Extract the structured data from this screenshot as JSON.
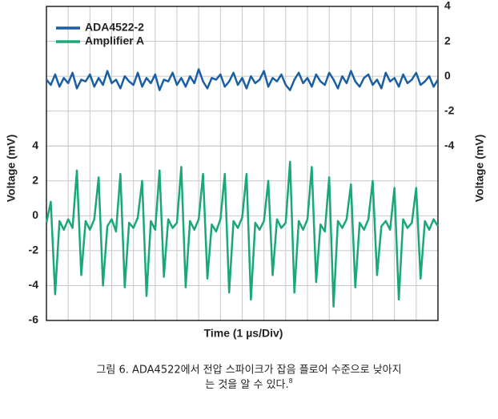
{
  "chart_data": {
    "type": "line",
    "x": [
      0,
      0.2,
      0.4,
      0.6,
      0.8,
      1,
      1.2,
      1.4,
      1.6,
      1.8,
      2,
      2.2,
      2.4,
      2.6,
      2.8,
      3,
      3.2,
      3.4,
      3.6,
      3.8,
      4,
      4.2,
      4.4,
      4.6,
      4.8,
      5,
      5.2,
      5.4,
      5.6,
      5.8,
      6,
      6.2,
      6.4,
      6.6,
      6.8,
      7,
      7.2,
      7.4,
      7.6,
      7.8,
      8,
      8.2,
      8.4,
      8.6,
      8.8,
      9,
      9.2,
      9.4,
      9.6,
      9.8,
      10,
      10.2,
      10.4,
      10.6,
      10.8,
      11,
      11.2,
      11.4,
      11.6,
      11.8,
      12,
      12.2,
      12.4,
      12.6,
      12.8,
      13,
      13.2,
      13.4,
      13.6,
      13.8,
      14,
      14.2,
      14.4,
      14.6,
      14.8,
      15,
      15.2,
      15.4,
      15.6,
      15.8,
      16,
      16.2,
      16.4,
      16.6,
      16.8,
      17,
      17.2,
      17.4,
      17.6,
      17.8,
      18
    ],
    "series": [
      {
        "name": "ADA4522-2",
        "color": "#1a5fa3",
        "axis": "y2",
        "values": [
          -0.2,
          -0.5,
          0.1,
          -0.6,
          -0.1,
          -0.4,
          0.2,
          -0.7,
          -0.2,
          -0.3,
          0.1,
          -0.6,
          -0.1,
          -0.5,
          0.3,
          -0.4,
          -0.2,
          -0.7,
          0.0,
          -0.3,
          -0.5,
          0.2,
          -0.6,
          -0.1,
          -0.4,
          0.1,
          -0.8,
          -0.2,
          -0.3,
          0.2,
          -0.5,
          -0.1,
          -0.6,
          0.0,
          -0.4,
          0.4,
          -0.3,
          -0.7,
          -0.1,
          -0.2,
          0.1,
          -0.6,
          -0.3,
          0.2,
          -0.5,
          -0.1,
          -0.7,
          0.0,
          -0.4,
          -0.2,
          0.3,
          -0.6,
          -0.1,
          -0.3,
          0.1,
          -0.5,
          -0.8,
          -0.2,
          0.2,
          -0.4,
          -0.1,
          -0.6,
          0.1,
          -0.3,
          -0.5,
          0.2,
          -0.2,
          -0.7,
          0.0,
          -0.4,
          0.3,
          -0.3,
          -0.6,
          -0.1,
          0.1,
          -0.5,
          -0.2,
          -0.7,
          0.2,
          -0.3,
          -0.1,
          -0.6,
          0.1,
          -0.4,
          -0.2,
          0.2,
          -0.5,
          -0.3,
          0.0,
          -0.6,
          -0.2
        ]
      },
      {
        "name": "Amplifier A",
        "color": "#1aa879",
        "values": [
          -0.4,
          0.8,
          -4.5,
          -0.3,
          -0.8,
          -0.2,
          -0.7,
          2.6,
          -3.4,
          -0.3,
          -0.8,
          -0.2,
          2.2,
          -4.0,
          -0.6,
          -0.2,
          -0.9,
          2.4,
          -4.1,
          -0.4,
          -0.7,
          -0.1,
          2.0,
          -4.6,
          -0.3,
          -0.8,
          2.6,
          -3.5,
          -0.2,
          -0.7,
          -0.4,
          2.8,
          -4.1,
          -0.3,
          -0.8,
          -0.2,
          2.4,
          -3.6,
          -0.5,
          -0.9,
          -0.2,
          2.4,
          -4.4,
          -0.3,
          -0.7,
          -0.1,
          2.4,
          -4.8,
          -0.4,
          -0.8,
          -0.3,
          2.0,
          -3.4,
          -0.2,
          -0.7,
          -0.4,
          3.1,
          -4.4,
          -0.3,
          -0.8,
          -0.2,
          2.8,
          -3.8,
          -0.5,
          -0.9,
          2.2,
          -5.2,
          -0.3,
          -0.7,
          -0.2,
          1.8,
          -4.1,
          -0.4,
          -0.8,
          -0.2,
          2.0,
          -3.4,
          -0.6,
          -0.3,
          -0.8,
          1.6,
          -4.8,
          -0.2,
          -0.7,
          -0.4,
          1.6,
          -3.6,
          -0.3,
          -0.8,
          -0.2,
          -0.6
        ]
      }
    ],
    "xlim": [
      0,
      18
    ],
    "xticks": [
      0,
      1,
      2,
      3,
      4,
      5,
      6,
      7,
      8,
      9,
      10,
      11,
      12,
      13,
      14,
      15,
      16,
      17,
      18
    ],
    "ylim": [
      -6,
      12
    ],
    "yticks": [
      4,
      2,
      0,
      -2,
      -4,
      -6
    ],
    "y2lim": [
      -14,
      4
    ],
    "y2ticks": [
      4,
      2,
      0,
      -2,
      -4
    ],
    "xlabel": "Time (1 µs/Div)",
    "ylabel": "Voltage (mV)",
    "y2label": "Voltage (mV)",
    "grid": true,
    "legend": "upper left",
    "caption": [
      "그림 6. ADA4522에서 전압 스파이크가 잡음 플로어 수준으로 낮아지",
      "는 것을 알 수 있다."
    ],
    "footnote": "8"
  }
}
